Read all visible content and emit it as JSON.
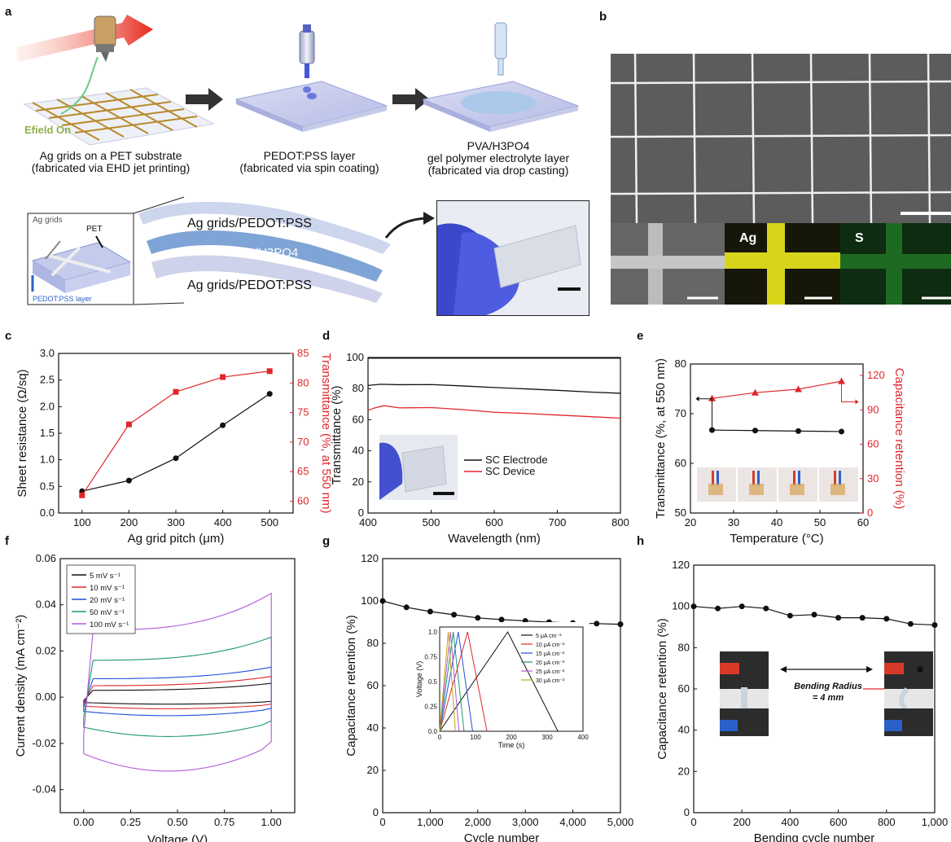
{
  "panels": {
    "a": {
      "label": "a",
      "efield": "Efield On",
      "step1_line1": "Ag grids on a PET substrate",
      "step1_line2": "(fabricated via EHD jet printing)",
      "step2_line1": "PEDOT:PSS layer",
      "step2_line2": "(fabricated via spin coating)",
      "step3_line1": "PVA/H3PO4",
      "step3_line2": "gel polymer electrolyte layer",
      "step3_line3": "(fabricated via drop casting)",
      "inset_ag_grids": "Ag grids",
      "inset_pet": "PET",
      "inset_pedot": "PEDOT:PSS layer",
      "layer_top": "Ag grids/PEDOT:PSS",
      "layer_mid": "PVA/H3PO4",
      "layer_bottom": "Ag grids/PEDOT:PSS"
    },
    "b": {
      "label": "b",
      "map_ag": "Ag",
      "map_s": "S"
    },
    "c": {
      "label": "c"
    },
    "d": {
      "label": "d"
    },
    "e": {
      "label": "e"
    },
    "f": {
      "label": "f"
    },
    "g": {
      "label": "g"
    },
    "h": {
      "label": "h",
      "bend_line1": "Bending Radius",
      "bend_line2": "= 4 mm"
    }
  },
  "colors": {
    "black": "#111111",
    "red": "#e0262b"
  },
  "chart_data": [
    {
      "id": "c",
      "type": "line",
      "xlabel": "Ag grid pitch (μm)",
      "ylabel": "Sheet resistance (Ω/sq)",
      "y2label": "Transmittance (%, at 550 nm)",
      "x": [
        100,
        200,
        300,
        400,
        500
      ],
      "xlim": [
        50,
        550
      ],
      "xticks": [
        "100",
        "200",
        "300",
        "400",
        "500"
      ],
      "ylim": [
        0,
        3.0
      ],
      "yticks": [
        "0.0",
        "0.5",
        "1.0",
        "1.5",
        "2.0",
        "2.5",
        "3.0"
      ],
      "y2lim": [
        58,
        85
      ],
      "y2ticks": [
        "60",
        "65",
        "70",
        "75",
        "80",
        "85"
      ],
      "series": [
        {
          "axis": "left",
          "color": "#111111",
          "marker": "circle",
          "values": [
            0.41,
            0.61,
            1.03,
            1.65,
            2.24
          ]
        },
        {
          "axis": "right",
          "color": "#e0262b",
          "marker": "square",
          "values": [
            61,
            73,
            78.5,
            81,
            82
          ]
        }
      ]
    },
    {
      "id": "d",
      "type": "line",
      "xlabel": "Wavelength (nm)",
      "ylabel": "Transmittance (%)",
      "xlim": [
        400,
        800
      ],
      "xticks": [
        "400",
        "500",
        "600",
        "700",
        "800"
      ],
      "ylim": [
        0,
        100
      ],
      "yticks": [
        "0",
        "20",
        "40",
        "60",
        "80",
        "100"
      ],
      "series": [
        {
          "name": "SC Electrode",
          "color": "#111111",
          "x": [
            400,
            420,
            450,
            500,
            550,
            600,
            650,
            700,
            750,
            800
          ],
          "values": [
            82,
            82.8,
            82.5,
            82.6,
            81.7,
            80.7,
            79.8,
            78.9,
            77.8,
            77
          ]
        },
        {
          "name": "SC Device",
          "color": "#e0262b",
          "x": [
            400,
            410,
            425,
            450,
            500,
            550,
            600,
            650,
            700,
            750,
            800
          ],
          "values": [
            66,
            67.5,
            69,
            67.6,
            67.8,
            66.5,
            64.8,
            64,
            63,
            62,
            61
          ]
        }
      ],
      "flat_line": {
        "y": 99.5,
        "color": "#111111"
      }
    },
    {
      "id": "e",
      "type": "line",
      "xlabel": "Temperature (°C)",
      "ylabel": "Transmittance (%, at 550 nm)",
      "y2label": "Capacitance retention  (%)",
      "x": [
        25,
        35,
        45,
        55
      ],
      "xlim": [
        20,
        60
      ],
      "xticks": [
        "20",
        "30",
        "40",
        "50",
        "60"
      ],
      "ylim": [
        50,
        80
      ],
      "yticks": [
        "50",
        "60",
        "70",
        "80"
      ],
      "y2lim": [
        0,
        130
      ],
      "y2ticks": [
        "0",
        "30",
        "60",
        "90",
        "120"
      ],
      "series": [
        {
          "axis": "left",
          "color": "#111111",
          "marker": "circle",
          "values": [
            66.7,
            66.6,
            66.5,
            66.4
          ]
        },
        {
          "axis": "right",
          "color": "#e0262b",
          "marker": "triangle",
          "values": [
            100,
            105,
            108,
            115
          ]
        }
      ]
    },
    {
      "id": "f",
      "type": "line",
      "xlabel": "Voltage (V)",
      "ylabel": "Current density (mA cm⁻²)",
      "xlim": [
        -0.125,
        1.125
      ],
      "xticks": [
        "0.00",
        "0.25",
        "0.50",
        "0.75",
        "1.00"
      ],
      "ylim": [
        -0.05,
        0.06
      ],
      "yticks": [
        "-0.04",
        "-0.02",
        "0.00",
        "0.02",
        "0.04",
        "0.06"
      ],
      "legend": [
        {
          "name": "5 mV s⁻¹",
          "color": "#111111"
        },
        {
          "name": "10 mV s⁻¹",
          "color": "#e0262b"
        },
        {
          "name": "20 mV s⁻¹",
          "color": "#1f4fd8"
        },
        {
          "name": "50 mV s⁻¹",
          "color": "#1a9a6a"
        },
        {
          "name": "100 mV s⁻¹",
          "color": "#b05ad8"
        }
      ],
      "loops": [
        {
          "color": "#111111",
          "up": 0.003,
          "end": 0.006,
          "down": -0.003
        },
        {
          "color": "#e0262b",
          "up": 0.005,
          "end": 0.009,
          "down": -0.005
        },
        {
          "color": "#1f4fd8",
          "up": 0.008,
          "end": 0.013,
          "down": -0.008
        },
        {
          "color": "#1a9a6a",
          "up": 0.016,
          "end": 0.026,
          "down": -0.017
        },
        {
          "color": "#b05ad8",
          "up": 0.029,
          "end": 0.045,
          "down": -0.032
        }
      ]
    },
    {
      "id": "g",
      "type": "line",
      "xlabel": "Cycle number",
      "ylabel": "Capacitance retention (%)",
      "xlim": [
        0,
        5000
      ],
      "xticks": [
        "0",
        "1,000",
        "2,000",
        "3,000",
        "4,000",
        "5,000"
      ],
      "ylim": [
        0,
        120
      ],
      "yticks": [
        "0",
        "20",
        "40",
        "60",
        "80",
        "100",
        "120"
      ],
      "x": [
        0,
        500,
        1000,
        1500,
        2000,
        2500,
        3000,
        3500,
        4000,
        4500,
        5000
      ],
      "values": [
        100,
        97,
        95,
        93.5,
        92,
        91.2,
        90.6,
        90,
        89.6,
        89.3,
        89
      ],
      "inset": {
        "xlabel": "Time (s)",
        "ylabel": "Voltage (V)",
        "xlim": [
          0,
          400
        ],
        "xticks": [
          "0",
          "100",
          "200",
          "300",
          "400"
        ],
        "ylim": [
          0,
          1.05
        ],
        "yticks": [
          "0.0",
          "0.25",
          "0.5",
          "0.75",
          "1.0"
        ],
        "legend": [
          {
            "name": "5 μA cm⁻²",
            "color": "#111111",
            "peak": 190,
            "end": 330
          },
          {
            "name": "10 μA cm⁻²",
            "color": "#e0262b",
            "peak": 78,
            "end": 132
          },
          {
            "name": "15 μA cm⁻²",
            "color": "#1f4fd8",
            "peak": 52,
            "end": 92
          },
          {
            "name": "20 μA cm⁻²",
            "color": "#1a9a6a",
            "peak": 38,
            "end": 68
          },
          {
            "name": "25 μA cm⁻²",
            "color": "#b05ad8",
            "peak": 30,
            "end": 54
          },
          {
            "name": "30 μA cm⁻²",
            "color": "#c9a21a",
            "peak": 24,
            "end": 44
          }
        ]
      }
    },
    {
      "id": "h",
      "type": "line",
      "xlabel": "Bending cycle number",
      "ylabel": "Capacitance retention (%)",
      "xlim": [
        0,
        1000
      ],
      "xticks": [
        "0",
        "200",
        "400",
        "600",
        "800",
        "1,000"
      ],
      "ylim": [
        0,
        120
      ],
      "yticks": [
        "0",
        "20",
        "40",
        "60",
        "80",
        "100",
        "120"
      ],
      "x": [
        0,
        100,
        200,
        300,
        400,
        500,
        600,
        700,
        800,
        900,
        1000
      ],
      "values": [
        100,
        99,
        100,
        99,
        95.5,
        96,
        94.5,
        94.5,
        94,
        91.5,
        91
      ]
    }
  ]
}
